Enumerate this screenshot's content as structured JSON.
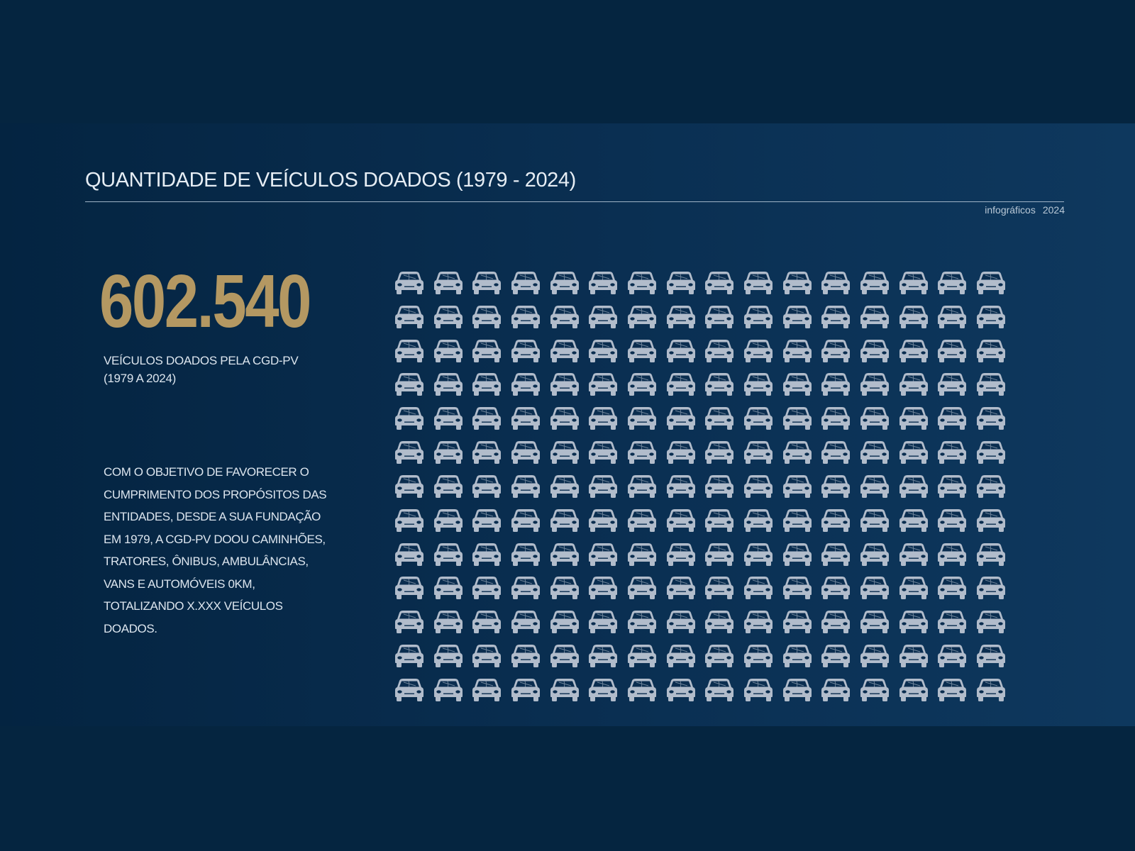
{
  "title": "QUANTIDADE DE VEÍCULOS DOADOS (1979 - 2024)",
  "brand": {
    "name": "infográficos",
    "year": "2024"
  },
  "headline": {
    "number": "602.540",
    "caption_line1": "VEÍCULOS DOADOS PELA CGD-PV",
    "caption_line2": "(1979 A 2024)"
  },
  "description": "COM O OBJETIVO DE FAVORECER O CUMPRIMENTO DOS PROPÓSITOS DAS ENTIDADES, DESDE A SUA FUNDAÇÃO EM 1979, A CGD-PV DOOU CAMINHÕES, TRATORES, ÔNIBUS, AMBULÂNCIAS, VANS E AUTOMÓVEIS 0KM, TOTALIZANDO X.XXX VEÍCULOS DOADOS.",
  "pictogram": {
    "icon": "car-icon",
    "rows": 13,
    "columns": 16,
    "color": "#b1bccb"
  },
  "colors": {
    "background": "#072843",
    "accent": "#b49862",
    "text": "#dce5ee"
  }
}
